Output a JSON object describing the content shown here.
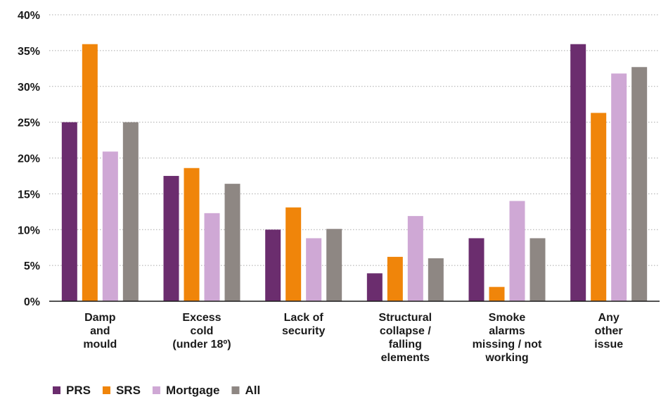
{
  "chart_data": {
    "type": "bar",
    "title": "",
    "xlabel": "",
    "ylabel": "",
    "ylim": [
      0,
      40
    ],
    "ytick_step": 5,
    "ytick_format": "percent",
    "grid": true,
    "legend_position": "bottom-left",
    "categories": [
      [
        "Damp",
        "and",
        "mould"
      ],
      [
        "Excess",
        "cold",
        "(under 18º)"
      ],
      [
        "Lack of",
        "security"
      ],
      [
        "Structural",
        "collapse /",
        "falling",
        "elements"
      ],
      [
        "Smoke",
        "alarms",
        "missing / not",
        "working"
      ],
      [
        "Any",
        "other",
        "issue"
      ]
    ],
    "series": [
      {
        "name": "PRS",
        "color": "#6b2d6e",
        "values": [
          25,
          17.5,
          10,
          3.9,
          8.8,
          35.9
        ]
      },
      {
        "name": "SRS",
        "color": "#f0850a",
        "values": [
          35.9,
          18.6,
          13.1,
          6.2,
          2,
          26.3
        ]
      },
      {
        "name": "Mortgage",
        "color": "#cfa8d5",
        "values": [
          20.9,
          12.3,
          8.8,
          11.9,
          14,
          31.8
        ]
      },
      {
        "name": "All",
        "color": "#8e8783",
        "values": [
          25,
          16.4,
          10.1,
          6,
          8.8,
          32.7
        ]
      }
    ]
  }
}
